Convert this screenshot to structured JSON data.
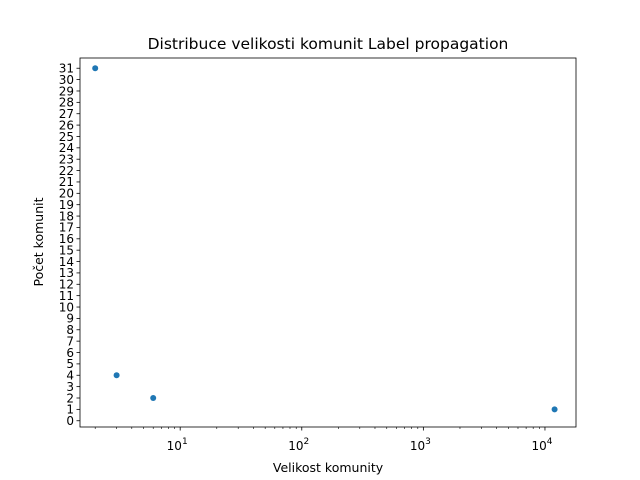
{
  "chart_data": {
    "type": "scatter",
    "title": "Distribuce velikosti komunit Label propagation",
    "xlabel": "Velikost komunity",
    "ylabel": "Počet komunit",
    "xscale": "log",
    "xlim": [
      1.5,
      18000
    ],
    "ylim": [
      -0.55,
      31.9
    ],
    "x_ticks": [
      {
        "value": 10,
        "base": "10",
        "exp": "1"
      },
      {
        "value": 100,
        "base": "10",
        "exp": "2"
      },
      {
        "value": 1000,
        "base": "10",
        "exp": "3"
      },
      {
        "value": 10000,
        "base": "10",
        "exp": "4"
      }
    ],
    "y_ticks": [
      "0",
      "1",
      "2",
      "3",
      "4",
      "5",
      "6",
      "7",
      "8",
      "9",
      "10",
      "11",
      "12",
      "13",
      "14",
      "15",
      "16",
      "17",
      "18",
      "19",
      "20",
      "21",
      "22",
      "23",
      "24",
      "25",
      "26",
      "27",
      "28",
      "29",
      "30",
      "31"
    ],
    "grid": false,
    "color": "#1f77b4",
    "points": [
      {
        "x": 2,
        "y": 31
      },
      {
        "x": 3,
        "y": 4
      },
      {
        "x": 6,
        "y": 2
      },
      {
        "x": 12000,
        "y": 1
      }
    ]
  }
}
